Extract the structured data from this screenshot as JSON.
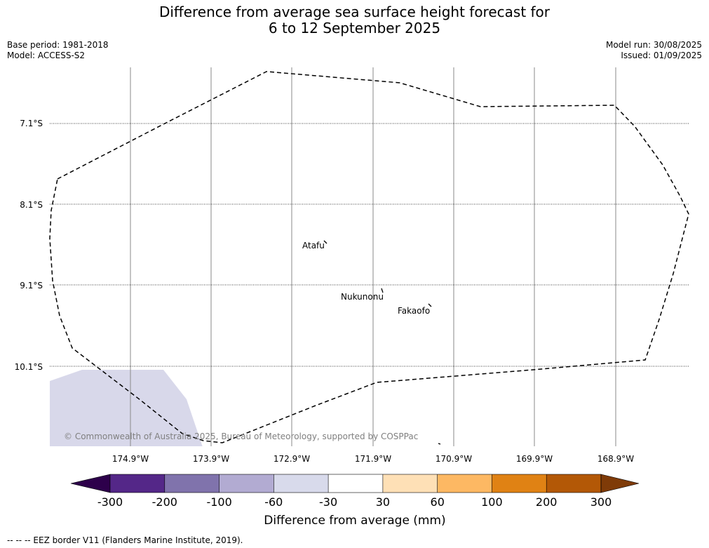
{
  "title": {
    "line1": "Difference from average sea surface height forecast for",
    "line2": "6 to 12 September 2025"
  },
  "meta": {
    "base_period": "Base period: 1981-2018",
    "model": "Model: ACCESS-S2",
    "model_run": "Model run: 30/08/2025",
    "issued": "Issued: 01/09/2025"
  },
  "map": {
    "lat_labels": [
      "7.1°S",
      "8.1°S",
      "9.1°S",
      "10.1°S"
    ],
    "lon_labels": [
      "174.9°W",
      "173.9°W",
      "172.9°W",
      "171.9°W",
      "170.9°W",
      "169.9°W",
      "168.9°W"
    ],
    "places": [
      {
        "name": "Atafu"
      },
      {
        "name": "Nukunonu"
      },
      {
        "name": "Fakaofo"
      }
    ],
    "copyright": "© Commonwealth of Australia 2025, Bureau of Meteorology, supported by COSPPac",
    "anomaly_fill_color": "#d8d8ea",
    "eez_border_color": "#000000"
  },
  "colorbar": {
    "label": "Difference from average (mm)",
    "ticks": [
      "-300",
      "-200",
      "-100",
      "-60",
      "-30",
      "30",
      "60",
      "100",
      "200",
      "300"
    ],
    "colors": [
      "#2d004b",
      "#542788",
      "#8073ac",
      "#b2abd2",
      "#d8daeb",
      "#ffffff",
      "#fee0b6",
      "#fdb863",
      "#e08214",
      "#b35806",
      "#7f3b08"
    ]
  },
  "footer": {
    "legend": "--  --  -- EEZ border V11 (Flanders Marine Institute, 2019)."
  }
}
